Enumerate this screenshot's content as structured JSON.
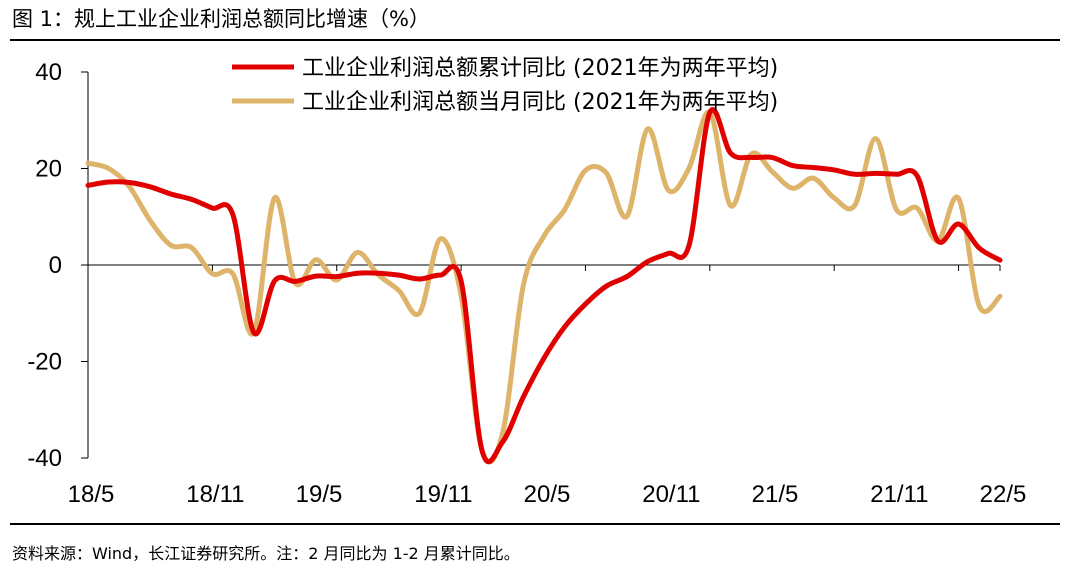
{
  "figure": {
    "title": "图 1：规上工业企业利润总额同比增速（%）",
    "source": "资料来源：Wind，长江证券研究所。注：2 月同比为 1-2 月累计同比。"
  },
  "chart_data": {
    "type": "line",
    "title": "规上工业企业利润总额同比增速（%）",
    "xlabel": "",
    "ylabel": "",
    "ylim": [
      -40,
      40
    ],
    "yticks": [
      -40,
      -20,
      0,
      20,
      40
    ],
    "x_tick_labels": [
      "18/5",
      "18/11",
      "19/5",
      "19/11",
      "20/5",
      "20/11",
      "21/5",
      "21/11",
      "22/5"
    ],
    "x": [
      "18/5",
      "18/6",
      "18/7",
      "18/8",
      "18/9",
      "18/10",
      "18/11",
      "18/12",
      "19/2",
      "19/3",
      "19/4",
      "19/5",
      "19/6",
      "19/7",
      "19/8",
      "19/9",
      "19/10",
      "19/11",
      "19/12",
      "20/2",
      "20/3",
      "20/4",
      "20/5",
      "20/6",
      "20/7",
      "20/8",
      "20/9",
      "20/10",
      "20/11",
      "20/12",
      "21/2",
      "21/3",
      "21/4",
      "21/5",
      "21/6",
      "21/7",
      "21/8",
      "21/9",
      "21/10",
      "21/11",
      "21/12",
      "22/2",
      "22/3",
      "22/4",
      "22/5"
    ],
    "legend_position": "top-center",
    "series": [
      {
        "name": "工业企业利润总额累计同比 (2021年为两年平均)",
        "color": "#E00000",
        "values": [
          16.5,
          17.2,
          17.1,
          16.2,
          14.7,
          13.6,
          11.8,
          10.3,
          -14.0,
          -3.3,
          -3.4,
          -2.3,
          -2.4,
          -1.7,
          -1.7,
          -2.1,
          -2.9,
          -2.1,
          -3.3,
          -38.3,
          -36.7,
          -27.4,
          -19.3,
          -12.8,
          -8.1,
          -4.4,
          -2.4,
          0.7,
          2.4,
          4.1,
          31.6,
          23.2,
          22.3,
          22.3,
          20.6,
          20.2,
          19.7,
          18.8,
          19.0,
          18.8,
          18.5,
          5.0,
          8.5,
          3.5,
          1.0
        ]
      },
      {
        "name": "工业企业利润总额当月同比 (2021年为两年平均)",
        "color": "#DDB46A",
        "values": [
          21.1,
          20.0,
          16.2,
          9.2,
          4.1,
          3.6,
          -1.8,
          -1.9,
          -14.0,
          13.9,
          -3.7,
          1.1,
          -3.1,
          2.6,
          -2.0,
          -5.3,
          -9.9,
          5.4,
          -6.3,
          -38.3,
          -34.9,
          -4.3,
          6.0,
          11.5,
          19.6,
          19.1,
          10.1,
          28.2,
          15.5,
          20.1,
          31.6,
          12.3,
          23.0,
          19.4,
          15.9,
          18.0,
          13.9,
          12.4,
          26.2,
          11.5,
          11.8,
          5.0,
          13.8,
          -8.5,
          -6.5
        ]
      }
    ]
  }
}
